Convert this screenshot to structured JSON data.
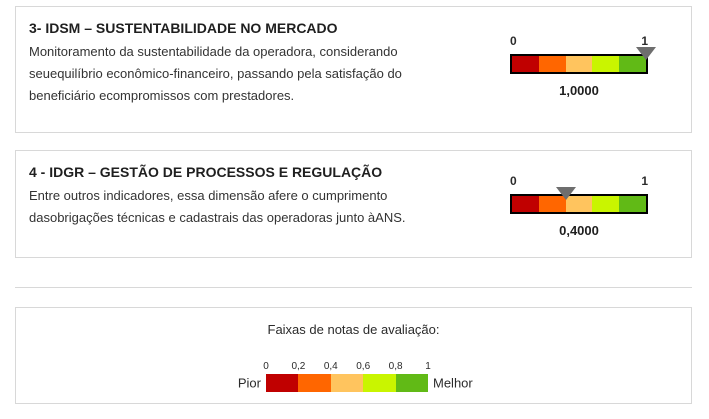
{
  "page": {
    "background_color": "#ffffff",
    "panel_border_color": "#d8d8d8"
  },
  "scale_colors": [
    "#c00000",
    "#ff6600",
    "#ffc45e",
    "#c9f500",
    "#61ba16"
  ],
  "marker_color": "#6e6e6e",
  "indicators": [
    {
      "title": "3- IDSM – SUSTENTABILIDADE NO MERCADO",
      "description": "Monitoramento da sustentabilidade da operadora, considerando\nseuequilíbrio econômico-financeiro, passando pela satisfação do\nbeneficiário ecompromissos com prestadores.",
      "scale_min": "0",
      "scale_max": "1",
      "value_label": "1,0000",
      "value": 1.0,
      "marker_pct": 100
    },
    {
      "title": "4 - IDGR – GESTÃO DE PROCESSOS E REGULAÇÃO",
      "description": "Entre outros indicadores, essa dimensão afere o cumprimento\ndasobrigações técnicas e cadastrais das operadoras junto àANS.",
      "scale_min": "0",
      "scale_max": "1",
      "value_label": "0,4000",
      "value": 0.4,
      "marker_pct": 40
    }
  ],
  "legend": {
    "title": "Faixas de notas de avaliação:",
    "ticks": [
      "0",
      "0,2",
      "0,4",
      "0,6",
      "0,8",
      "1"
    ],
    "worse_label": "Pior",
    "better_label": "Melhor"
  },
  "chart_data": [
    {
      "type": "gauge",
      "title": "3- IDSM – SUSTENTABILIDADE NO MERCADO",
      "range": [
        0,
        1
      ],
      "value": 1.0,
      "value_label": "1,0000",
      "bands": [
        {
          "from": 0.0,
          "to": 0.2,
          "color": "#c00000"
        },
        {
          "from": 0.2,
          "to": 0.4,
          "color": "#ff6600"
        },
        {
          "from": 0.4,
          "to": 0.6,
          "color": "#ffc45e"
        },
        {
          "from": 0.6,
          "to": 0.8,
          "color": "#c9f500"
        },
        {
          "from": 0.8,
          "to": 1.0,
          "color": "#61ba16"
        }
      ]
    },
    {
      "type": "gauge",
      "title": "4 - IDGR – GESTÃO DE PROCESSOS E REGULAÇÃO",
      "range": [
        0,
        1
      ],
      "value": 0.4,
      "value_label": "0,4000",
      "bands": [
        {
          "from": 0.0,
          "to": 0.2,
          "color": "#c00000"
        },
        {
          "from": 0.2,
          "to": 0.4,
          "color": "#ff6600"
        },
        {
          "from": 0.4,
          "to": 0.6,
          "color": "#ffc45e"
        },
        {
          "from": 0.6,
          "to": 0.8,
          "color": "#c9f500"
        },
        {
          "from": 0.8,
          "to": 1.0,
          "color": "#61ba16"
        }
      ]
    },
    {
      "type": "scale-legend",
      "title": "Faixas de notas de avaliação:",
      "ticks": [
        0,
        0.2,
        0.4,
        0.6,
        0.8,
        1
      ],
      "low_label": "Pior",
      "high_label": "Melhor"
    }
  ]
}
